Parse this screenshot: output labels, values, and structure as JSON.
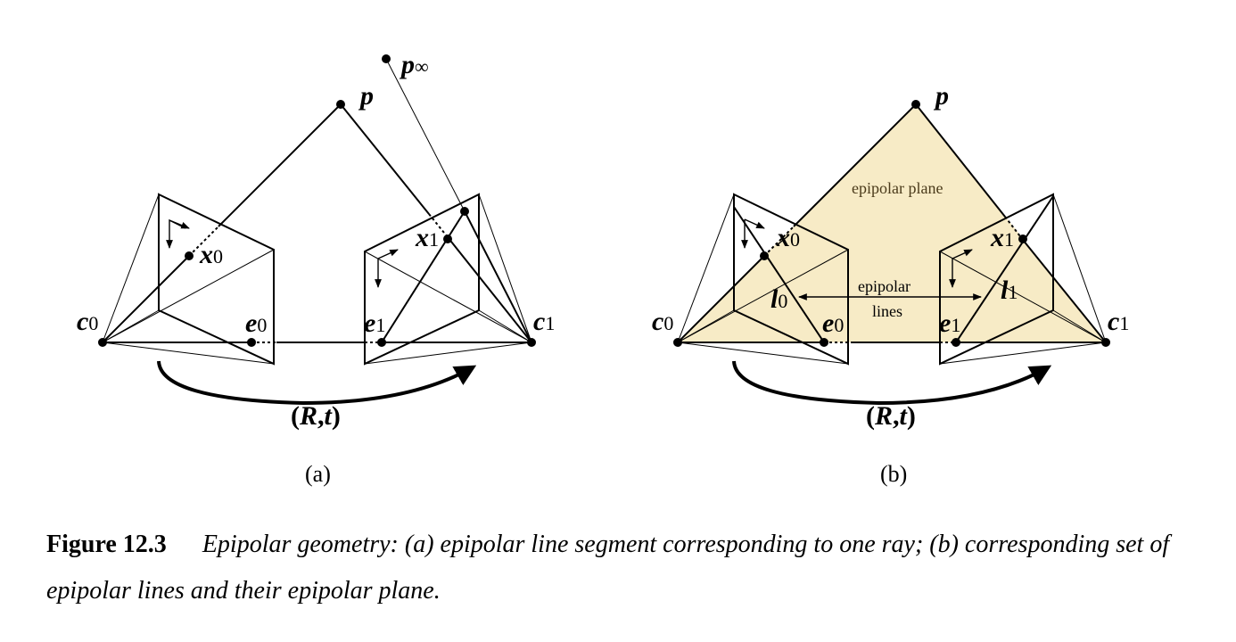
{
  "panel_a": {
    "label": "(a)",
    "point_labels": {
      "p_inf": {
        "base": "p",
        "sub": "∞"
      },
      "p": {
        "base": "p",
        "sub": ""
      },
      "x0": {
        "base": "x",
        "sub": "0"
      },
      "x1": {
        "base": "x",
        "sub": "1"
      },
      "c0": {
        "base": "c",
        "sub": "0"
      },
      "c1": {
        "base": "c",
        "sub": "1"
      },
      "e0": {
        "base": "e",
        "sub": "0"
      },
      "e1": {
        "base": "e",
        "sub": "1"
      }
    },
    "motion": {
      "open": "(",
      "R": "R",
      "comma": ",",
      "t": "t",
      "close": ")"
    }
  },
  "panel_b": {
    "label": "(b)",
    "plane_label": "epipolar plane",
    "lines_label_1": "epipolar",
    "lines_label_2": "lines",
    "point_labels": {
      "p": {
        "base": "p",
        "sub": ""
      },
      "x0": {
        "base": "x",
        "sub": "0"
      },
      "x1": {
        "base": "x",
        "sub": "1"
      },
      "l0": {
        "base": "l",
        "sub": "0"
      },
      "l1": {
        "base": "l",
        "sub": "1"
      },
      "c0": {
        "base": "c",
        "sub": "0"
      },
      "c1": {
        "base": "c",
        "sub": "1"
      },
      "e0": {
        "base": "e",
        "sub": "0"
      },
      "e1": {
        "base": "e",
        "sub": "1"
      }
    },
    "motion": {
      "open": "(",
      "R": "R",
      "comma": ",",
      "t": "t",
      "close": ")"
    }
  },
  "caption": {
    "figure_number": "Figure 12.3",
    "text": "Epipolar geometry: (a) epipolar line segment corresponding to one ray; (b) corresponding set of epipolar lines and their epipolar plane."
  },
  "colors": {
    "plane_fill": "#f7ebc6",
    "ink": "#000000"
  }
}
